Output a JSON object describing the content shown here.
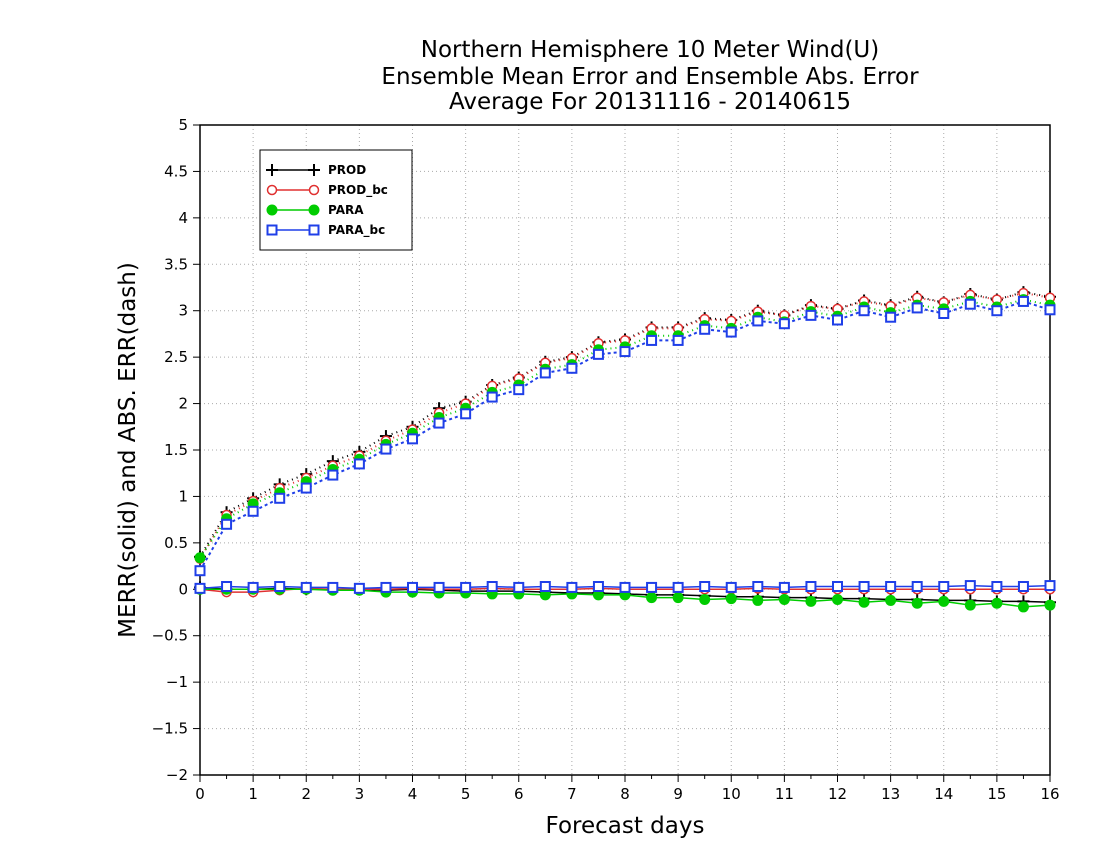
{
  "chart_data": {
    "type": "line",
    "title": "Northern Hemisphere 10 Meter Wind(U)",
    "subtitle": "Ensemble Mean Error and Ensemble Abs. Error",
    "subtitle2": "Average For 20131116 - 20140615",
    "xlabel": "Forecast days",
    "ylabel": "MERR(solid) and ABS. ERR(dash)",
    "xlim": [
      0,
      16
    ],
    "ylim": [
      -2,
      5
    ],
    "xticks": [
      0,
      1,
      2,
      3,
      4,
      5,
      6,
      7,
      8,
      9,
      10,
      11,
      12,
      13,
      14,
      15,
      16
    ],
    "yticks": [
      -2,
      -1.5,
      -1,
      -0.5,
      0,
      0.5,
      1,
      1.5,
      2,
      2.5,
      3,
      3.5,
      4,
      4.5,
      5
    ],
    "grid": true,
    "legend_position": "top-left",
    "x": [
      0,
      0.5,
      1,
      1.5,
      2,
      2.5,
      3,
      3.5,
      4,
      4.5,
      5,
      5.5,
      6,
      6.5,
      7,
      7.5,
      8,
      8.5,
      9,
      9.5,
      10,
      10.5,
      11,
      11.5,
      12,
      12.5,
      13,
      13.5,
      14,
      14.5,
      15,
      15.5,
      16
    ],
    "series": [
      {
        "name": "PROD",
        "color": "#000000",
        "marker": "plus",
        "merr": [
          0.02,
          0.0,
          0.0,
          0.01,
          0.0,
          0.0,
          0.0,
          -0.01,
          0.0,
          -0.01,
          -0.02,
          -0.02,
          -0.02,
          -0.03,
          -0.04,
          -0.04,
          -0.05,
          -0.06,
          -0.06,
          -0.07,
          -0.08,
          -0.08,
          -0.09,
          -0.09,
          -0.1,
          -0.1,
          -0.11,
          -0.11,
          -0.12,
          -0.12,
          -0.13,
          -0.13,
          -0.14
        ],
        "abs_err": [
          0.35,
          0.83,
          0.98,
          1.13,
          1.24,
          1.38,
          1.48,
          1.65,
          1.75,
          1.95,
          2.02,
          2.2,
          2.28,
          2.45,
          2.5,
          2.66,
          2.69,
          2.82,
          2.82,
          2.92,
          2.9,
          3.0,
          2.95,
          3.06,
          3.02,
          3.11,
          3.06,
          3.15,
          3.09,
          3.18,
          3.12,
          3.2,
          3.15
        ]
      },
      {
        "name": "PROD_bc",
        "color": "#e03030",
        "marker": "circle",
        "merr": [
          0.0,
          -0.03,
          -0.03,
          -0.01,
          0.01,
          0.0,
          0.0,
          0.0,
          0.01,
          0.0,
          0.0,
          0.01,
          0.0,
          0.0,
          0.0,
          0.01,
          0.0,
          0.0,
          0.0,
          0.0,
          0.0,
          0.01,
          0.0,
          0.0,
          0.0,
          0.0,
          0.0,
          0.0,
          0.0,
          0.0,
          0.0,
          0.0,
          0.0
        ],
        "abs_err": [
          0.33,
          0.8,
          0.95,
          1.09,
          1.2,
          1.33,
          1.44,
          1.6,
          1.72,
          1.9,
          2.0,
          2.19,
          2.27,
          2.44,
          2.49,
          2.65,
          2.68,
          2.81,
          2.81,
          2.91,
          2.89,
          2.99,
          2.95,
          3.05,
          3.02,
          3.1,
          3.05,
          3.14,
          3.09,
          3.17,
          3.12,
          3.19,
          3.14
        ]
      },
      {
        "name": "PARA",
        "color": "#00cc00",
        "marker": "dot",
        "merr": [
          0.0,
          0.0,
          0.0,
          0.0,
          0.0,
          -0.01,
          -0.01,
          -0.03,
          -0.03,
          -0.04,
          -0.04,
          -0.05,
          -0.05,
          -0.06,
          -0.05,
          -0.06,
          -0.06,
          -0.09,
          -0.09,
          -0.11,
          -0.1,
          -0.12,
          -0.11,
          -0.13,
          -0.11,
          -0.14,
          -0.12,
          -0.15,
          -0.13,
          -0.17,
          -0.15,
          -0.19,
          -0.17
        ],
        "abs_err": [
          0.34,
          0.76,
          0.92,
          1.04,
          1.16,
          1.29,
          1.4,
          1.56,
          1.68,
          1.85,
          1.95,
          2.12,
          2.2,
          2.37,
          2.42,
          2.58,
          2.61,
          2.73,
          2.73,
          2.84,
          2.81,
          2.93,
          2.88,
          2.99,
          2.94,
          3.04,
          2.98,
          3.06,
          3.02,
          3.1,
          3.04,
          3.12,
          3.06
        ]
      },
      {
        "name": "PARA_bc",
        "color": "#1f3fe8",
        "marker": "square",
        "merr": [
          0.01,
          0.03,
          0.02,
          0.03,
          0.02,
          0.02,
          0.01,
          0.02,
          0.02,
          0.02,
          0.02,
          0.03,
          0.02,
          0.03,
          0.02,
          0.03,
          0.02,
          0.02,
          0.02,
          0.03,
          0.02,
          0.03,
          0.02,
          0.03,
          0.03,
          0.03,
          0.03,
          0.03,
          0.03,
          0.04,
          0.03,
          0.03,
          0.04
        ],
        "abs_err": [
          0.2,
          0.7,
          0.84,
          0.98,
          1.09,
          1.23,
          1.35,
          1.51,
          1.62,
          1.79,
          1.89,
          2.07,
          2.15,
          2.33,
          2.38,
          2.53,
          2.56,
          2.68,
          2.68,
          2.8,
          2.77,
          2.89,
          2.86,
          2.95,
          2.9,
          3.0,
          2.93,
          3.03,
          2.97,
          3.07,
          3.0,
          3.1,
          3.01
        ]
      }
    ]
  }
}
